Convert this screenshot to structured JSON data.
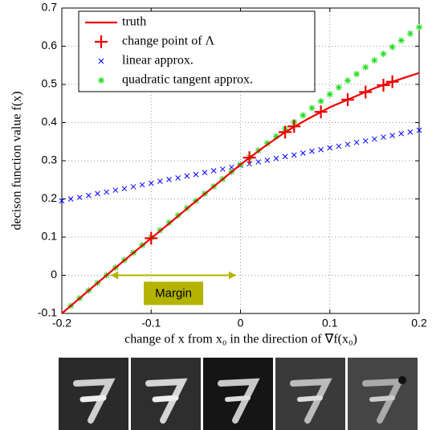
{
  "chart_data": {
    "type": "line",
    "xlabel": "change of x from x₀ in the direction of ∇f(x₀)",
    "ylabel": "decison function value f(x)",
    "xlim": [
      -0.2,
      0.2
    ],
    "ylim": [
      -0.1,
      0.7
    ],
    "xticks": [
      -0.2,
      -0.1,
      0,
      0.1,
      0.2
    ],
    "yticks": [
      -0.1,
      0,
      0.1,
      0.2,
      0.3,
      0.4,
      0.5,
      0.6,
      0.7
    ],
    "grid": true,
    "legend": "upper-left",
    "series": [
      {
        "name": "truth",
        "color": "#ee0000",
        "style": "line",
        "x": [
          -0.2,
          -0.175,
          -0.15,
          -0.125,
          -0.1,
          -0.075,
          -0.05,
          -0.025,
          0,
          0.025,
          0.05,
          0.075,
          0.1,
          0.125,
          0.15,
          0.175,
          0.2
        ],
        "values": [
          -0.1,
          -0.05,
          0.0,
          0.049,
          0.097,
          0.145,
          0.194,
          0.242,
          0.29,
          0.334,
          0.375,
          0.409,
          0.44,
          0.465,
          0.49,
          0.511,
          0.53
        ]
      },
      {
        "name": "change point of Λ",
        "color": "#ee0000",
        "style": "plus",
        "x": [
          -0.1,
          0.01,
          0.05,
          0.06,
          0.09,
          0.12,
          0.14,
          0.16,
          0.17
        ],
        "values": [
          0.097,
          0.308,
          0.375,
          0.39,
          0.428,
          0.46,
          0.48,
          0.498,
          0.507
        ]
      },
      {
        "name": "linear approx.",
        "color": "#0000ff",
        "style": "x",
        "x": [
          -0.2,
          -0.19,
          -0.18,
          -0.17,
          -0.16,
          -0.15,
          -0.14,
          -0.13,
          -0.12,
          -0.11,
          -0.1,
          -0.09,
          -0.08,
          -0.07,
          -0.06,
          -0.05,
          -0.04,
          -0.03,
          -0.02,
          -0.01,
          0,
          0.01,
          0.02,
          0.03,
          0.04,
          0.05,
          0.06,
          0.07,
          0.08,
          0.09,
          0.1,
          0.11,
          0.12,
          0.13,
          0.14,
          0.15,
          0.16,
          0.17,
          0.18,
          0.19,
          0.2
        ],
        "values": [
          0.195,
          0.2,
          0.204,
          0.209,
          0.214,
          0.218,
          0.223,
          0.227,
          0.232,
          0.237,
          0.241,
          0.246,
          0.251,
          0.255,
          0.26,
          0.264,
          0.269,
          0.274,
          0.278,
          0.283,
          0.288,
          0.292,
          0.297,
          0.301,
          0.306,
          0.311,
          0.315,
          0.32,
          0.325,
          0.329,
          0.334,
          0.338,
          0.343,
          0.348,
          0.352,
          0.357,
          0.362,
          0.366,
          0.371,
          0.375,
          0.38
        ]
      },
      {
        "name": "quadratic tangent approx.",
        "color": "#22dd22",
        "style": "star",
        "x": [
          -0.19,
          -0.18,
          -0.17,
          -0.16,
          -0.15,
          -0.14,
          -0.13,
          -0.12,
          -0.11,
          -0.1,
          -0.09,
          -0.08,
          -0.07,
          -0.06,
          -0.05,
          -0.04,
          -0.03,
          -0.02,
          -0.01,
          0,
          0.01,
          0.02,
          0.03,
          0.04,
          0.05,
          0.06,
          0.07,
          0.08,
          0.09,
          0.1,
          0.11,
          0.12,
          0.13,
          0.14,
          0.15,
          0.16,
          0.17,
          0.18,
          0.19,
          0.2
        ],
        "values": [
          -0.08,
          -0.06,
          -0.04,
          -0.02,
          0.0,
          0.02,
          0.04,
          0.059,
          0.079,
          0.099,
          0.118,
          0.138,
          0.157,
          0.176,
          0.195,
          0.214,
          0.233,
          0.252,
          0.271,
          0.29,
          0.309,
          0.327,
          0.346,
          0.364,
          0.383,
          0.401,
          0.419,
          0.438,
          0.456,
          0.474,
          0.492,
          0.51,
          0.527,
          0.545,
          0.563,
          0.58,
          0.598,
          0.615,
          0.633,
          0.65
        ]
      }
    ],
    "annotation": {
      "text": "Margin",
      "x": [
        -0.145,
        -0.005
      ],
      "y": 0,
      "color": "#b3b300"
    }
  }
}
